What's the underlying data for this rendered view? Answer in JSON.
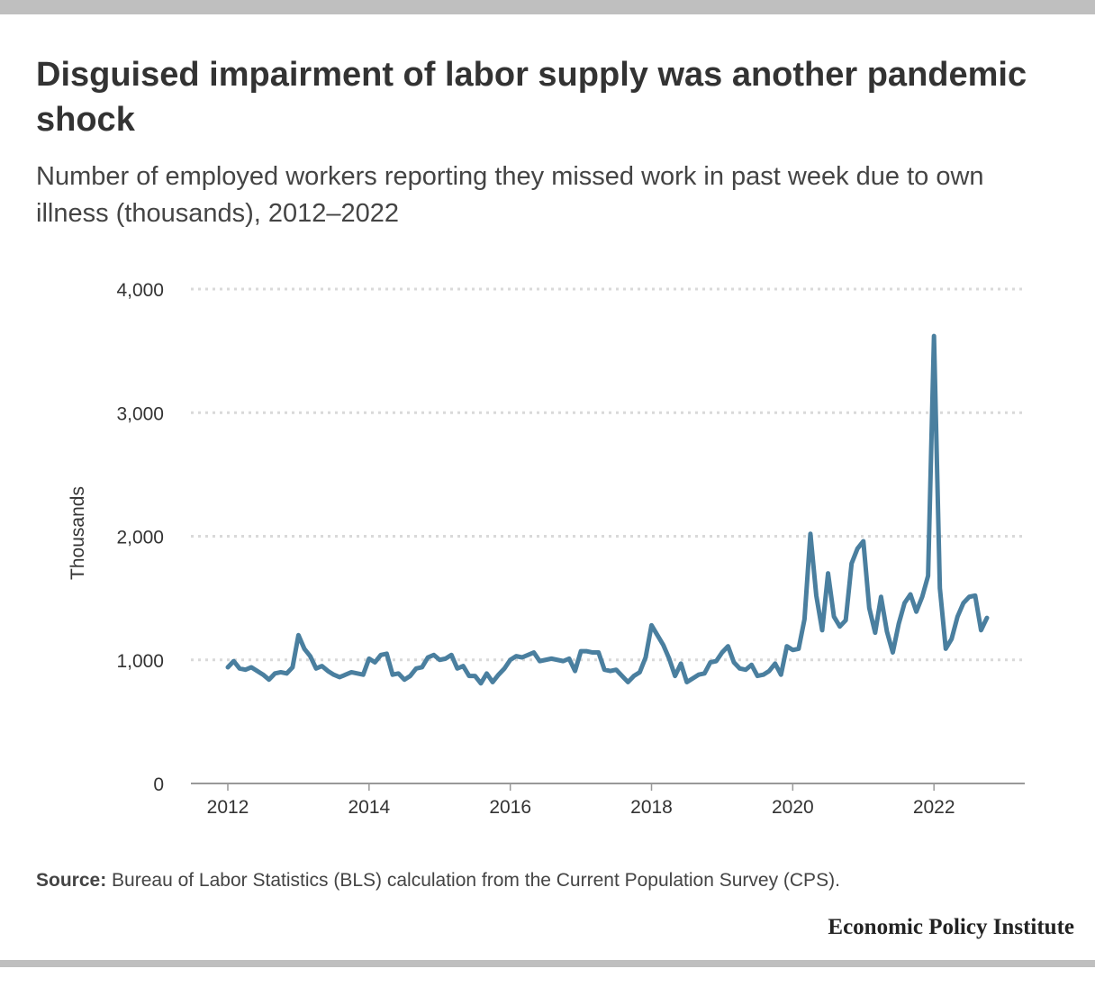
{
  "header": {
    "title": "Disguised impairment of labor supply was another pandemic shock",
    "subtitle": "Number of employed workers reporting they missed work in past week due to own illness (thousands), 2012–2022"
  },
  "footer": {
    "source_label": "Source:",
    "source_text": "Bureau of Labor Statistics (BLS) calculation from the Current Population Survey (CPS).",
    "brand": "Economic Policy Institute"
  },
  "colors": {
    "line": "#4a7f9f",
    "grid": "#d9d9d9",
    "axis": "#999999"
  },
  "chart_data": {
    "type": "line",
    "ylabel": "Thousands",
    "xlabel": "",
    "ylim": [
      0,
      4000
    ],
    "yticks": [
      0,
      1000,
      2000,
      3000,
      4000
    ],
    "ytick_labels": [
      "0",
      "1,000",
      "2,000",
      "3,000",
      "4,000"
    ],
    "xticks": [
      2012,
      2014,
      2016,
      2018,
      2020,
      2022
    ],
    "xtick_labels": [
      "2012",
      "2014",
      "2016",
      "2018",
      "2020",
      "2022"
    ],
    "grid": true,
    "frequency": "monthly",
    "start": "2012-01",
    "end": "2022-10",
    "series": [
      {
        "values": [
          940,
          990,
          930,
          920,
          940,
          910,
          880,
          840,
          890,
          900,
          890,
          940,
          1200,
          1090,
          1030,
          930,
          950,
          910,
          880,
          860,
          880,
          900,
          890,
          880,
          1010,
          980,
          1040,
          1050,
          880,
          890,
          840,
          870,
          930,
          940,
          1020,
          1040,
          1000,
          1010,
          1040,
          930,
          950,
          870,
          870,
          810,
          890,
          820,
          880,
          930,
          1000,
          1030,
          1020,
          1040,
          1060,
          990,
          1000,
          1010,
          1000,
          990,
          1010,
          910,
          1070,
          1070,
          1060,
          1060,
          920,
          910,
          920,
          870,
          820,
          870,
          900,
          1020,
          1280,
          1200,
          1120,
          1010,
          870,
          970,
          820,
          850,
          880,
          890,
          980,
          990,
          1060,
          1110,
          980,
          930,
          920,
          960,
          870,
          880,
          910,
          970,
          880,
          1110,
          1080,
          1090,
          1330,
          2020,
          1520,
          1240,
          1700,
          1350,
          1270,
          1320,
          1780,
          1900,
          1960,
          1420,
          1220,
          1510,
          1230,
          1060,
          1290,
          1460,
          1530,
          1390,
          1510,
          1680,
          3620,
          1580,
          1090,
          1170,
          1350,
          1460,
          1510,
          1520,
          1240,
          1340
        ]
      }
    ]
  }
}
